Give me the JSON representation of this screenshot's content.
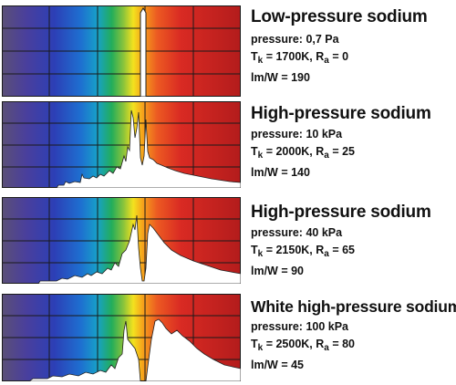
{
  "panels": [
    {
      "title": "Low-pressure sodium",
      "pressure": "pressure: 0,7 Pa",
      "tk_value": "= 1700K, R",
      "ra_value": "= 0",
      "lmw": "lm/W = 190"
    },
    {
      "title": "High-pressure sodium",
      "pressure": "pressure: 10 kPa",
      "tk_value": "= 2000K, R",
      "ra_value": "= 25",
      "lmw": "lm/W = 140"
    },
    {
      "title": "High-pressure sodium",
      "pressure": "pressure: 40 kPa",
      "tk_value": "= 2150K, R",
      "ra_value": "= 65",
      "lmw": "lm/W = 90"
    },
    {
      "title": "White high-pressure sodium",
      "pressure": "pressure: 100 kPa",
      "tk_value": "= 2500K, R",
      "ra_value": "= 80",
      "lmw": "lm/W = 45"
    }
  ],
  "labels": {
    "t_symbol": "T",
    "t_sub": "k",
    "r_sub": "a"
  },
  "spectrum_colors": [
    "#5a4e86",
    "#3b3dab",
    "#2056c7",
    "#1c8ad6",
    "#19a8a0",
    "#2fae4a",
    "#9cc43a",
    "#f2e21f",
    "#f7a11c",
    "#ee5d22",
    "#d92a23",
    "#c11f1f",
    "#b31c1c"
  ],
  "grid_color": "#1a1a1a",
  "emission_fill": "#ffffff"
}
